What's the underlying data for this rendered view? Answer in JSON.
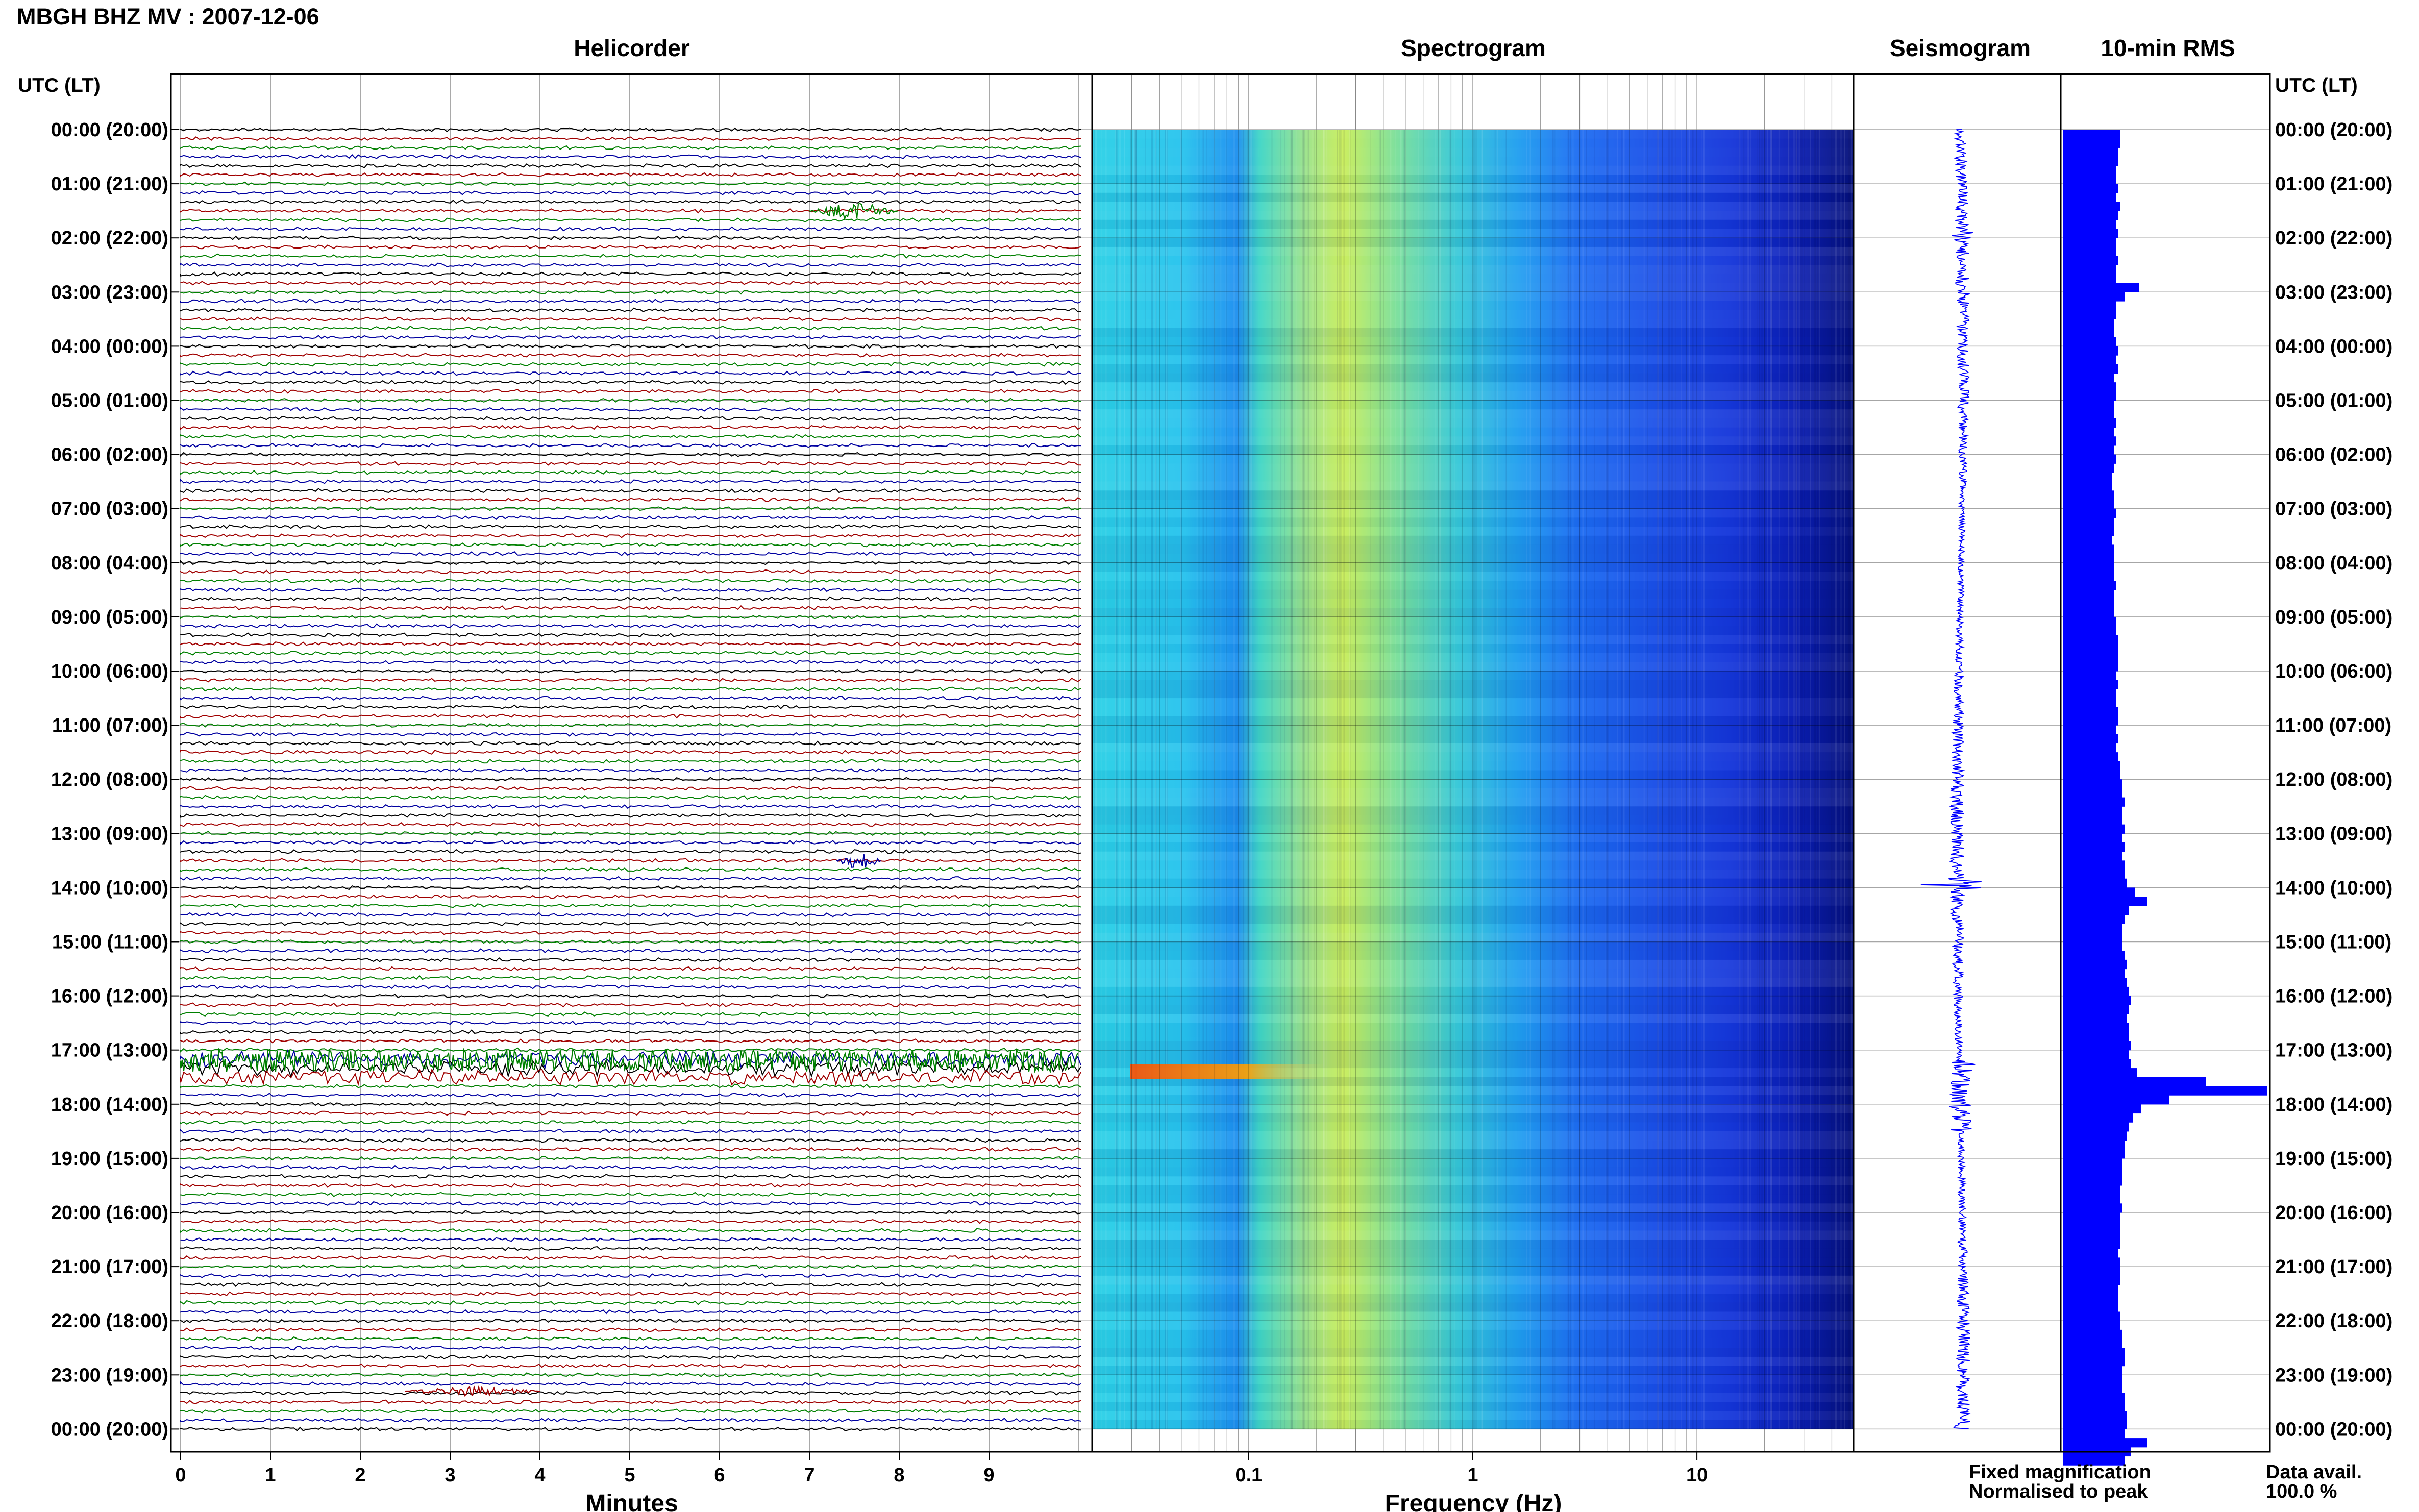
{
  "header": {
    "title": "MBGH BHZ MV : 2007-12-06"
  },
  "panels": {
    "helicorder": "Helicorder",
    "spectrogram": "Spectrogram",
    "seismogram": "Seismogram",
    "rms": "10-min RMS"
  },
  "axes": {
    "left_time_header": "UTC (LT)",
    "right_time_header": "UTC (LT)",
    "helicorder_xlabel": "Minutes",
    "spectrogram_xlabel": "Frequency (Hz)"
  },
  "legend": {
    "fixed": "Fixed magnification",
    "normalised": "Normalised to peak",
    "fixed_color": "#1a1aff",
    "normalised_color": "#ff1a1a"
  },
  "availability": {
    "label": "Data avail.",
    "value": "100.0 %"
  },
  "colors": {
    "trace_cycle": [
      "#000000",
      "#a00000",
      "#008000",
      "#0000a0"
    ],
    "rms_fill": "#0000ff",
    "seismogram": "#0000ff"
  },
  "chart_data": {
    "type": "helicorder",
    "time_labels": [
      "00:00 (20:00)",
      "01:00 (21:00)",
      "02:00 (22:00)",
      "03:00 (23:00)",
      "04:00 (00:00)",
      "05:00 (01:00)",
      "06:00 (02:00)",
      "07:00 (03:00)",
      "08:00 (04:00)",
      "09:00 (05:00)",
      "10:00 (06:00)",
      "11:00 (07:00)",
      "12:00 (08:00)",
      "13:00 (09:00)",
      "14:00 (10:00)",
      "15:00 (11:00)",
      "16:00 (12:00)",
      "17:00 (13:00)",
      "18:00 (14:00)",
      "19:00 (15:00)",
      "20:00 (16:00)",
      "21:00 (17:00)",
      "22:00 (18:00)",
      "23:00 (19:00)",
      "00:00 (20:00)"
    ],
    "minutes_ticks": [
      0,
      1,
      2,
      3,
      4,
      5,
      6,
      7,
      8,
      9
    ],
    "traces_per_hour": 6,
    "frequency_ticks": [
      "0.1",
      "1",
      "10"
    ],
    "frequency_range_hz": [
      0.02,
      50
    ],
    "events": [
      {
        "utc_hour": 1.5,
        "minute": 7.0,
        "duration_min": 1.0,
        "amplitude": "moderate"
      },
      {
        "utc_hour": 13.5,
        "minute": 7.3,
        "duration_min": 0.5,
        "amplitude": "moderate"
      },
      {
        "utc_hour": 17.2,
        "minute": 0.0,
        "duration_min": 20,
        "amplitude": "large"
      },
      {
        "utc_hour": 23.3,
        "minute": 2.5,
        "duration_min": 1.5,
        "amplitude": "small"
      }
    ],
    "rms_relative": [
      0.28,
      0.28,
      0.27,
      0.27,
      0.26,
      0.26,
      0.27,
      0.26,
      0.28,
      0.27,
      0.26,
      0.27,
      0.26,
      0.26,
      0.27,
      0.26,
      0.26,
      0.37,
      0.3,
      0.26,
      0.26,
      0.25,
      0.25,
      0.26,
      0.27,
      0.26,
      0.27,
      0.25,
      0.26,
      0.26,
      0.25,
      0.25,
      0.26,
      0.25,
      0.26,
      0.25,
      0.26,
      0.25,
      0.24,
      0.24,
      0.25,
      0.25,
      0.26,
      0.25,
      0.25,
      0.24,
      0.25,
      0.25,
      0.25,
      0.25,
      0.26,
      0.25,
      0.25,
      0.25,
      0.26,
      0.26,
      0.27,
      0.27,
      0.27,
      0.27,
      0.26,
      0.27,
      0.26,
      0.26,
      0.27,
      0.27,
      0.26,
      0.27,
      0.26,
      0.27,
      0.28,
      0.28,
      0.29,
      0.29,
      0.3,
      0.29,
      0.29,
      0.3,
      0.29,
      0.3,
      0.29,
      0.3,
      0.3,
      0.31,
      0.35,
      0.41,
      0.32,
      0.3,
      0.29,
      0.29,
      0.29,
      0.3,
      0.31,
      0.3,
      0.31,
      0.32,
      0.33,
      0.32,
      0.31,
      0.32,
      0.32,
      0.33,
      0.32,
      0.33,
      0.36,
      0.7,
      1.0,
      0.52,
      0.38,
      0.34,
      0.32,
      0.31,
      0.3,
      0.3,
      0.29,
      0.29,
      0.29,
      0.28,
      0.28,
      0.29,
      0.28,
      0.28,
      0.28,
      0.28,
      0.27,
      0.28,
      0.28,
      0.28,
      0.27,
      0.27,
      0.27,
      0.28,
      0.28,
      0.29,
      0.29,
      0.3,
      0.3,
      0.29,
      0.29,
      0.29,
      0.3,
      0.3,
      0.31,
      0.31,
      0.3,
      0.41,
      0.33,
      0.3
    ]
  }
}
